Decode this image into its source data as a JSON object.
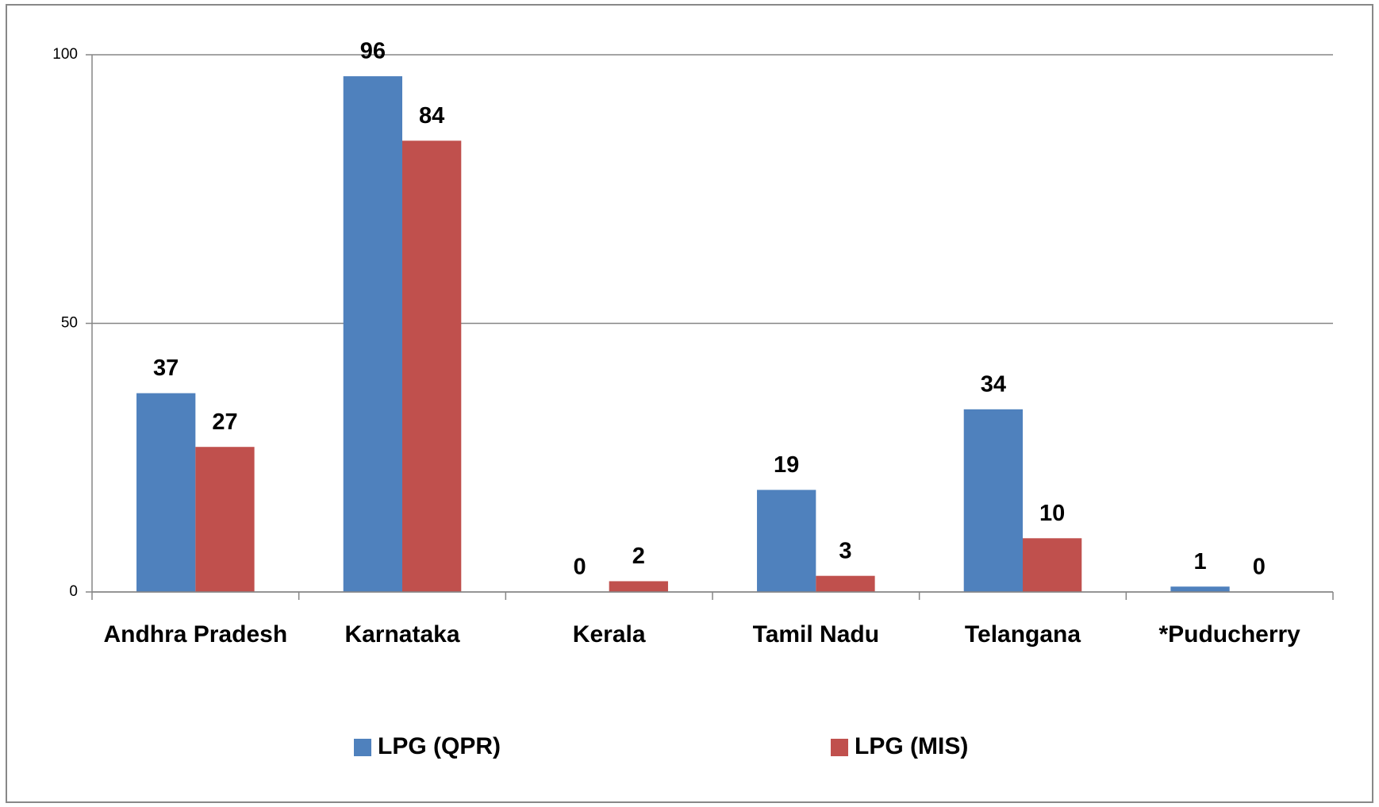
{
  "chart_data": {
    "type": "bar",
    "categories": [
      "Andhra Pradesh",
      "Karnataka",
      "Kerala",
      "Tamil Nadu",
      "Telangana",
      "*Puducherry"
    ],
    "series": [
      {
        "name": "LPG (QPR)",
        "color": "#4f81bd",
        "values": [
          37,
          96,
          0,
          19,
          34,
          1
        ]
      },
      {
        "name": "LPG (MIS)",
        "color": "#c0504d",
        "values": [
          27,
          84,
          2,
          3,
          10,
          0
        ]
      }
    ],
    "ylim": [
      0,
      100
    ],
    "yticks": [
      0,
      50,
      100
    ],
    "grid": true,
    "legend": "bottom"
  }
}
